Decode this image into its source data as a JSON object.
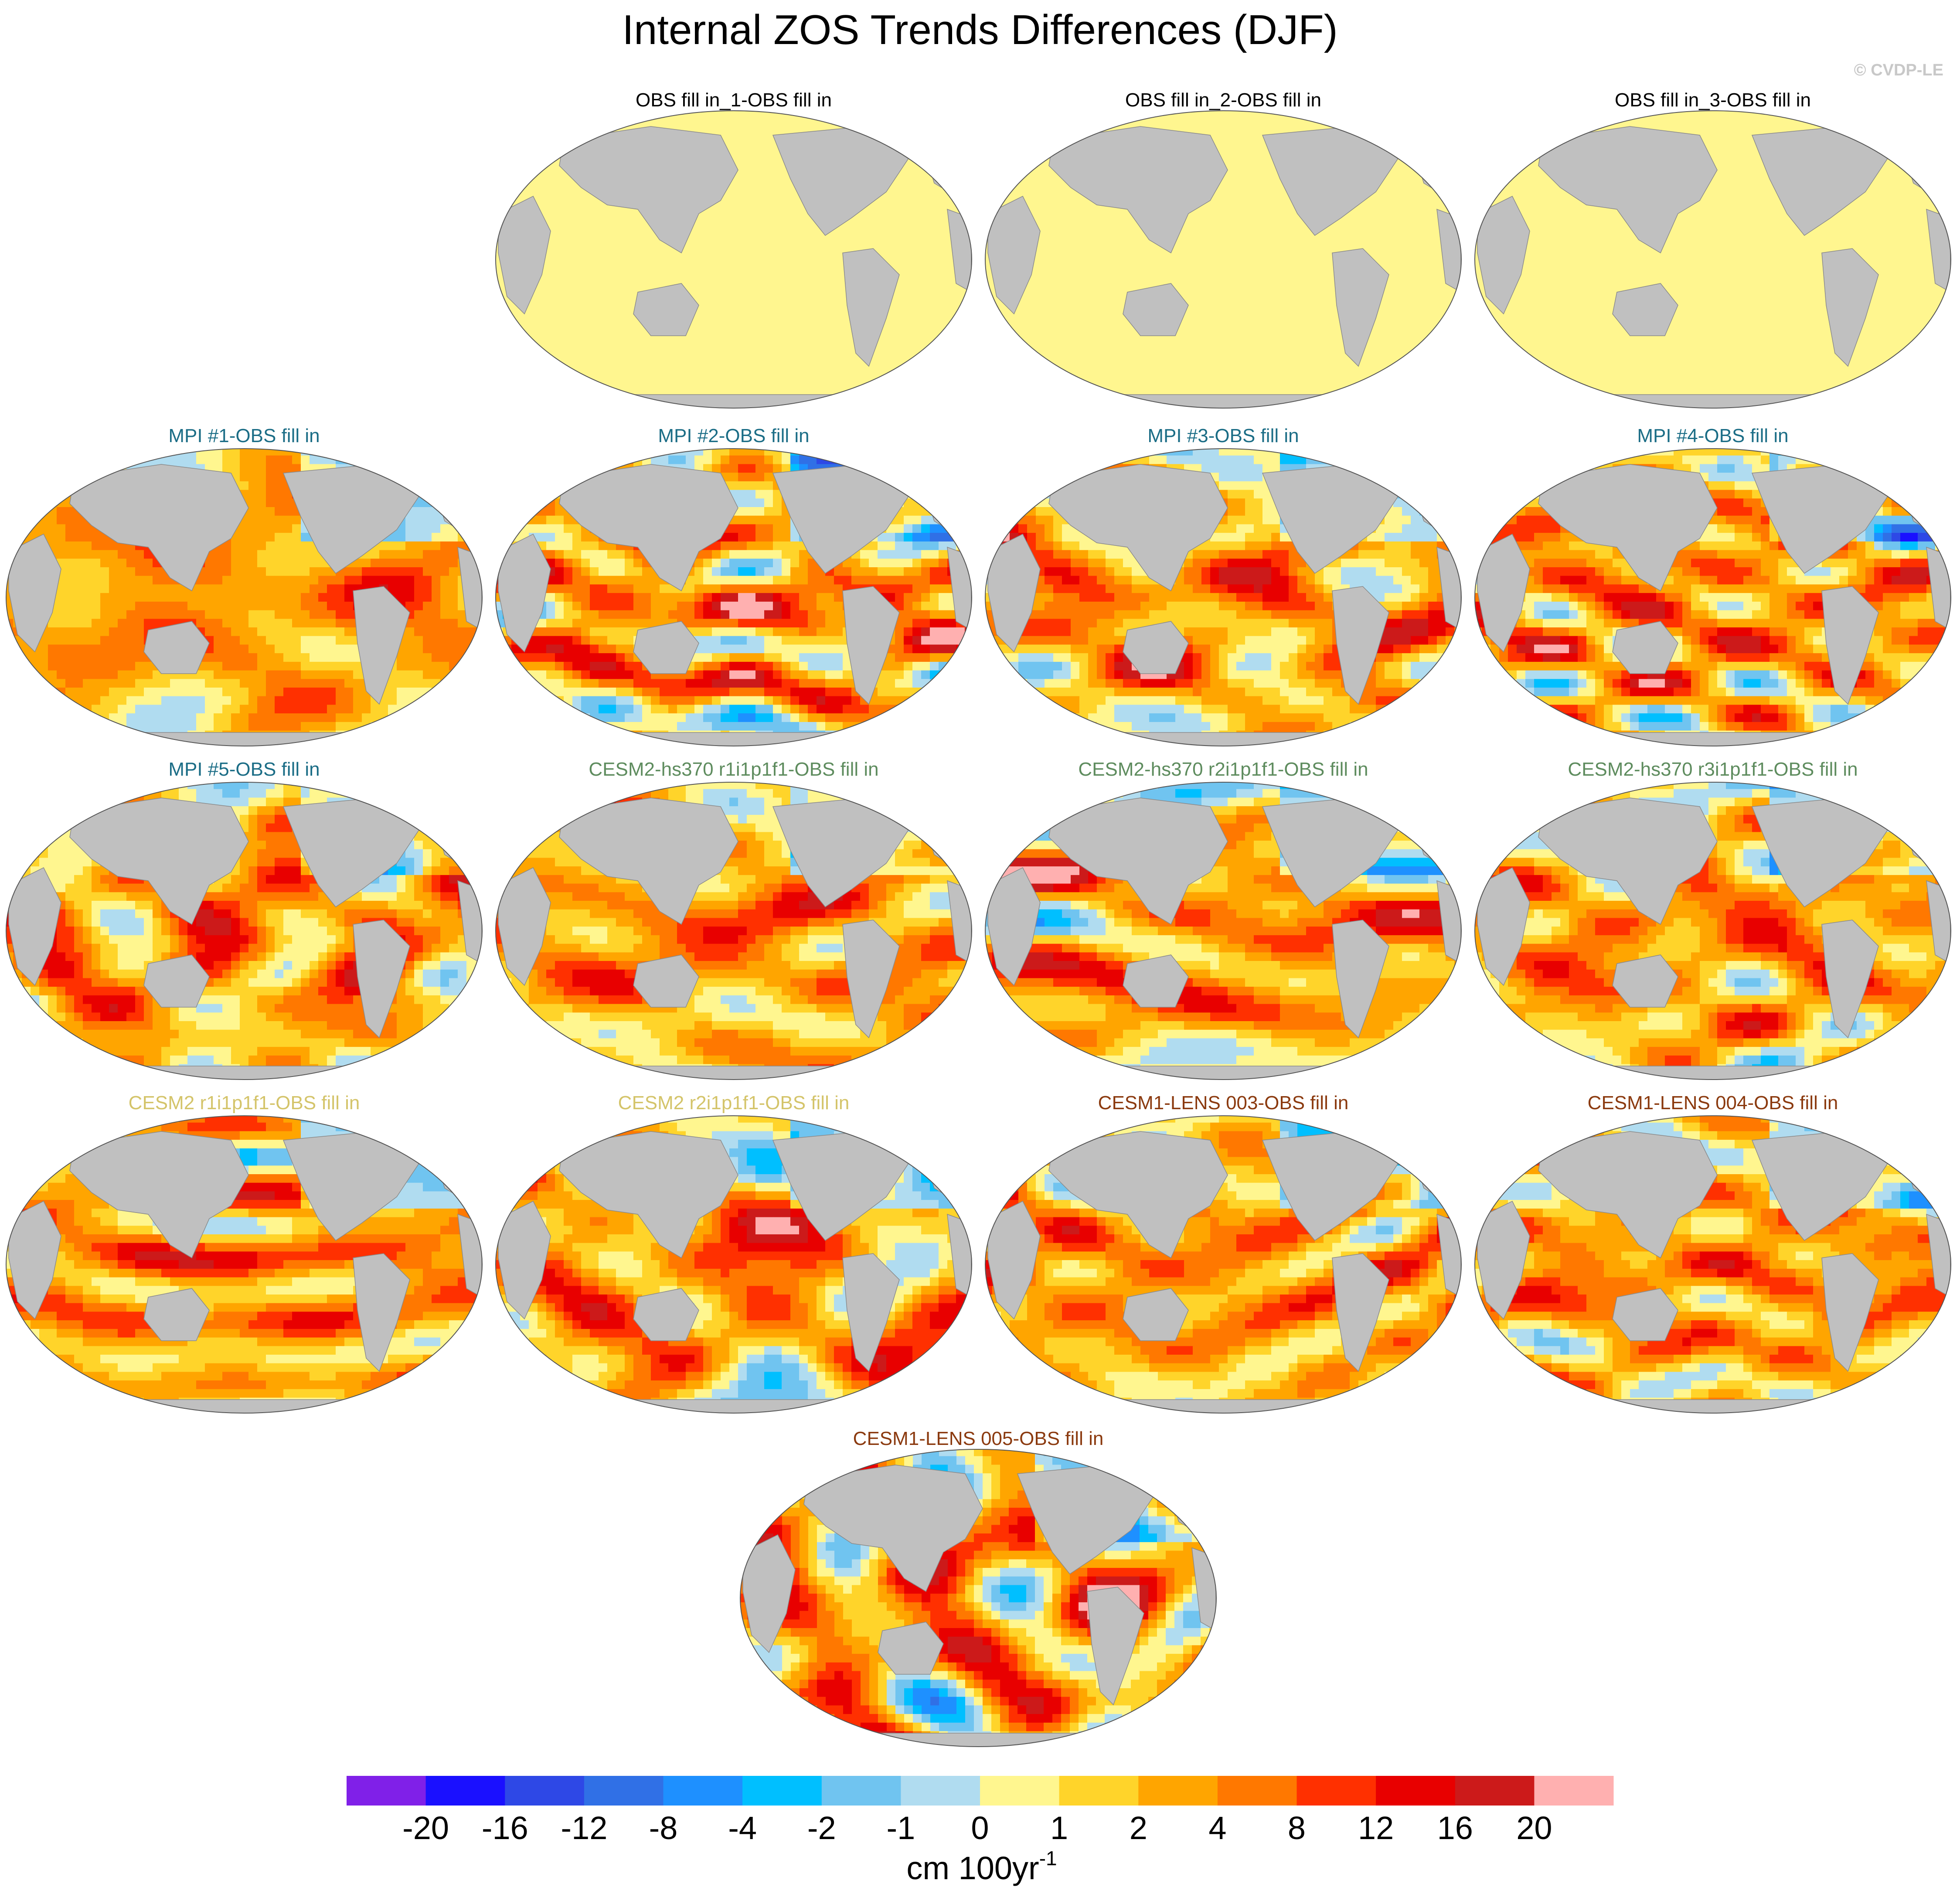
{
  "chart_data": {
    "type": "heatmap",
    "title": "Internal ZOS Trends Differences (DJF)",
    "credit": "© CVDP-LE",
    "projection": "Robinson (Pacific-centred)",
    "land_color": "#c0c0c0",
    "panels": [
      {
        "title": "OBS fill in_1-OBS fill in",
        "title_color": "#000000",
        "pattern": "uniform"
      },
      {
        "title": "OBS fill in_2-OBS fill in",
        "title_color": "#000000",
        "pattern": "uniform"
      },
      {
        "title": "OBS fill in_3-OBS fill in",
        "title_color": "#000000",
        "pattern": "uniform"
      },
      {
        "title": "MPI #1-OBS fill in",
        "title_color": "#1b6d86",
        "pattern": "field",
        "seed": 11
      },
      {
        "title": "MPI #2-OBS fill in",
        "title_color": "#1b6d86",
        "pattern": "field",
        "seed": 23
      },
      {
        "title": "MPI #3-OBS fill in",
        "title_color": "#1b6d86",
        "pattern": "field",
        "seed": 37
      },
      {
        "title": "MPI #4-OBS fill in",
        "title_color": "#1b6d86",
        "pattern": "field",
        "seed": 41
      },
      {
        "title": "MPI #5-OBS fill in",
        "title_color": "#1b6d86",
        "pattern": "field",
        "seed": 53
      },
      {
        "title": "CESM2-hs370 r1i1p1f1-OBS fill in",
        "title_color": "#5e8c5e",
        "pattern": "field",
        "seed": 67
      },
      {
        "title": "CESM2-hs370 r2i1p1f1-OBS fill in",
        "title_color": "#5e8c5e",
        "pattern": "field",
        "seed": 71
      },
      {
        "title": "CESM2-hs370 r3i1p1f1-OBS fill in",
        "title_color": "#5e8c5e",
        "pattern": "field",
        "seed": 83
      },
      {
        "title": "CESM2 r1i1p1f1-OBS fill in",
        "title_color": "#d4c46a",
        "pattern": "field",
        "seed": 97
      },
      {
        "title": "CESM2 r2i1p1f1-OBS fill in",
        "title_color": "#d4c46a",
        "pattern": "field",
        "seed": 101
      },
      {
        "title": "CESM1-LENS 003-OBS fill in",
        "title_color": "#8b3a0f",
        "pattern": "field",
        "seed": 113
      },
      {
        "title": "CESM1-LENS 004-OBS fill in",
        "title_color": "#8b3a0f",
        "pattern": "field",
        "seed": 127
      },
      {
        "title": "CESM1-LENS 005-OBS fill in",
        "title_color": "#8b3a0f",
        "pattern": "field",
        "seed": 131
      }
    ],
    "colorbar": {
      "colors": [
        "#8020e8",
        "#1a10ff",
        "#2e48e6",
        "#3070e6",
        "#1e90ff",
        "#00bfff",
        "#70c4f0",
        "#b0dcf0",
        "#fff68f",
        "#ffd42a",
        "#ffa500",
        "#ff7800",
        "#ff3000",
        "#e80000",
        "#cc1a1a",
        "#ffb0b0"
      ],
      "labels": [
        "-20",
        "-16",
        "-12",
        "-8",
        "-4",
        "-2",
        "-1",
        "0",
        "1",
        "2",
        "4",
        "8",
        "12",
        "16",
        "20"
      ],
      "units_base": "cm 100yr",
      "units_sup": "-1"
    }
  }
}
